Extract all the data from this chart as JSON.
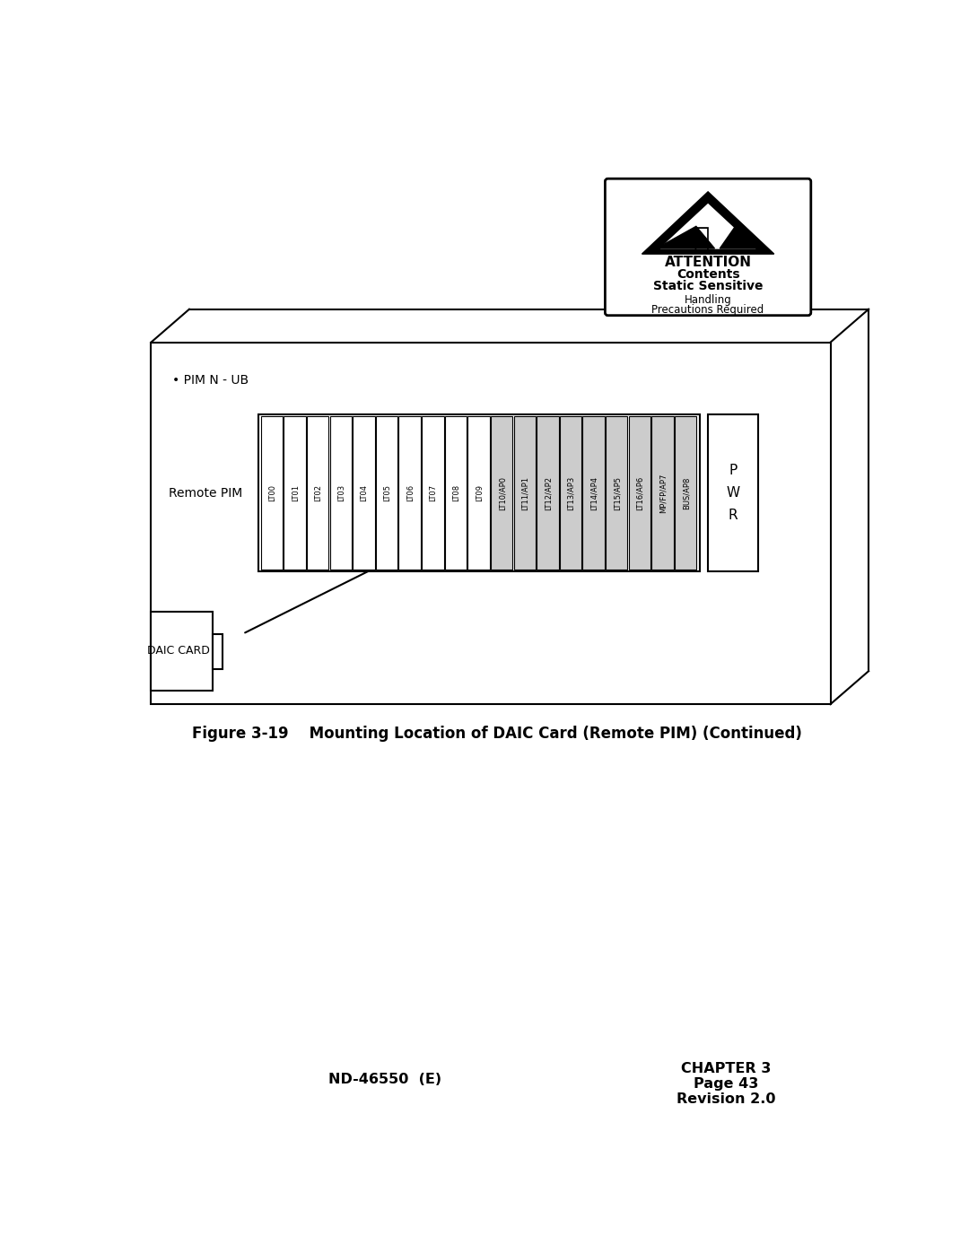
{
  "page_bg": "#ffffff",
  "title": "Figure 3-19    Mounting Location of DAIC Card (Remote PIM) (Continued)",
  "footer_left": "ND-46550  (E)",
  "footer_right_line1": "CHAPTER 3",
  "footer_right_line2": "Page 43",
  "footer_right_line3": "Revision 2.0",
  "pim_label": "• PIM N - UB",
  "remote_pim_label": "Remote PIM",
  "daic_card_label": "DAIC CARD",
  "pwr_label": "P\nW\nR",
  "white_slots": [
    "LT00",
    "LT01",
    "LT02",
    "LT03",
    "LT04",
    "LT05",
    "LT06",
    "LT07",
    "LT08",
    "LT09"
  ],
  "gray_slots": [
    "LT10/AP0",
    "LT11/AP1",
    "LT12/AP2",
    "LT13/AP3",
    "LT14/AP4",
    "LT15/AP5",
    "LT16/AP6",
    "MP/FP/AP7",
    "BUS/AP8"
  ],
  "slot_fill_white": "#ffffff",
  "slot_fill_gray": "#cccccc",
  "attention_box": {
    "title": "ATTENTION",
    "line1": "Contents",
    "line2": "Static Sensitive",
    "line3": "Handling",
    "line4": "Precautions Required"
  }
}
